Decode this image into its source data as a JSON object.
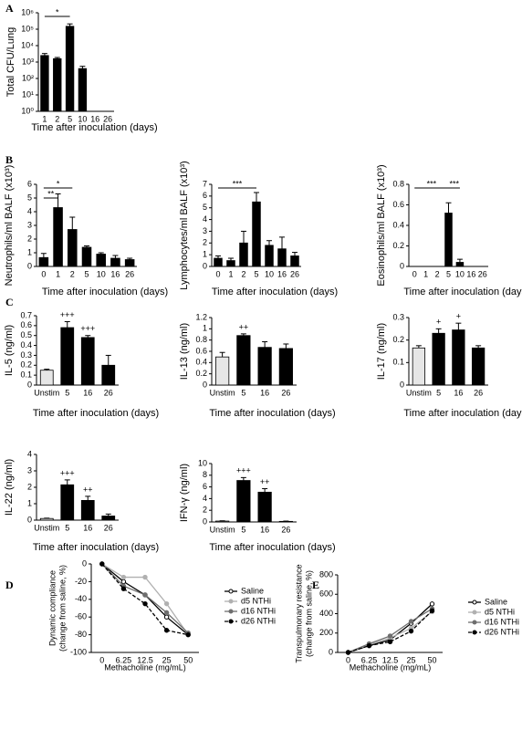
{
  "chart_data": [
    {
      "type": "bar",
      "panel_label": "A",
      "ylabel": "Total CFU/Lung",
      "xlabel": "Time after inoculation (days)",
      "log_scale": true,
      "color": "#000000",
      "categories": [
        "1",
        "2",
        "5",
        "10",
        "16",
        "26"
      ],
      "values": [
        2500,
        1600,
        150000,
        400,
        null,
        null
      ],
      "errors": [
        800,
        300,
        60000,
        150,
        null,
        null
      ],
      "ylim": [
        1,
        1000000
      ],
      "yticks": [
        {
          "value": 1,
          "label": "10⁰"
        },
        {
          "value": 10,
          "label": "10¹"
        },
        {
          "value": 100,
          "label": "10²"
        },
        {
          "value": 1000,
          "label": "10³"
        },
        {
          "value": 10000,
          "label": "10⁴"
        },
        {
          "value": 100000,
          "label": "10⁵"
        },
        {
          "value": 1000000,
          "label": "10⁶"
        }
      ],
      "annotations": [
        {
          "text": "*",
          "between": [
            "1",
            "5"
          ]
        }
      ]
    },
    {
      "type": "bar",
      "panel_label": "B",
      "ylabel": "Neutrophils/ml BALF (x10³)",
      "xlabel": "Time after inoculation (days)",
      "color": "#000000",
      "categories": [
        "0",
        "1",
        "2",
        "5",
        "10",
        "16",
        "26"
      ],
      "values": [
        0.65,
        4.3,
        2.7,
        1.4,
        0.9,
        0.6,
        0.5
      ],
      "errors": [
        0.3,
        1.0,
        0.9,
        0.1,
        0.1,
        0.2,
        0.1
      ],
      "ylim": [
        0,
        6
      ],
      "yticks": [
        0,
        1,
        2,
        3,
        4,
        5,
        6
      ],
      "annotations": [
        {
          "text": "*",
          "between": [
            "0",
            "2"
          ]
        },
        {
          "text": "**",
          "between": [
            "0",
            "1"
          ]
        }
      ]
    },
    {
      "type": "bar",
      "ylabel": "Lymphocytes/ml BALF (x10³)",
      "xlabel": "Time after inoculation (days)",
      "color": "#000000",
      "categories": [
        "0",
        "1",
        "2",
        "5",
        "10",
        "16",
        "26"
      ],
      "values": [
        0.7,
        0.5,
        2.0,
        5.5,
        1.8,
        1.5,
        0.9
      ],
      "errors": [
        0.2,
        0.2,
        1.0,
        0.8,
        0.4,
        1.0,
        0.3
      ],
      "ylim": [
        0,
        7
      ],
      "yticks": [
        0,
        1,
        2,
        3,
        4,
        5,
        6,
        7
      ],
      "annotations": [
        {
          "text": "***",
          "between": [
            "0",
            "5"
          ]
        }
      ]
    },
    {
      "type": "bar",
      "ylabel": "Eosinophils/ml BALF (x10³)",
      "xlabel": "Time after inoculation (days)",
      "color": "#000000",
      "categories": [
        "0",
        "1",
        "2",
        "5",
        "10",
        "16",
        "26"
      ],
      "values": [
        0,
        0,
        0,
        0.52,
        0.04,
        0,
        0
      ],
      "errors": [
        0,
        0,
        0,
        0.1,
        0.03,
        0,
        0
      ],
      "ylim": [
        0,
        0.8
      ],
      "yticks": [
        0,
        0.2,
        0.4,
        0.6,
        0.8
      ],
      "annotations": [
        {
          "text": "***",
          "between": [
            "0",
            "5"
          ]
        },
        {
          "text": "***",
          "between": [
            "5",
            "10"
          ]
        }
      ]
    },
    {
      "type": "bar",
      "panel_label": "C",
      "ylabel": "IL-5  (ng/ml)",
      "xlabel": "Time after inoculation (days)",
      "colors": [
        "#e6e6e6",
        "#000000",
        "#000000",
        "#000000"
      ],
      "categories": [
        "Unstim",
        "5",
        "16",
        "26"
      ],
      "values": [
        0.15,
        0.58,
        0.48,
        0.2
      ],
      "errors": [
        0.01,
        0.06,
        0.02,
        0.1
      ],
      "ylim": [
        0,
        0.7
      ],
      "yticks": [
        0,
        0.1,
        0.2,
        0.3,
        0.4,
        0.5,
        0.6,
        0.7
      ],
      "bar_labels": [
        {
          "text": "+++",
          "category": "5"
        },
        {
          "text": "+++",
          "category": "16"
        }
      ]
    },
    {
      "type": "bar",
      "ylabel": "IL-13 (ng/ml)",
      "xlabel": "Time after inoculation (days)",
      "colors": [
        "#e6e6e6",
        "#000000",
        "#000000",
        "#000000"
      ],
      "categories": [
        "Unstim",
        "5",
        "16",
        "26"
      ],
      "values": [
        0.5,
        0.88,
        0.67,
        0.65
      ],
      "errors": [
        0.08,
        0.03,
        0.1,
        0.08
      ],
      "ylim": [
        0,
        1.2
      ],
      "yticks": [
        0,
        0.2,
        0.4,
        0.6,
        0.8,
        1.0,
        1.2
      ],
      "bar_labels": [
        {
          "text": "++",
          "category": "5"
        }
      ]
    },
    {
      "type": "bar",
      "ylabel": "IL-17 (ng/ml)",
      "xlabel": "Time after inoculation (days)",
      "colors": [
        "#e6e6e6",
        "#000000",
        "#000000",
        "#000000"
      ],
      "categories": [
        "Unstim",
        "5",
        "16",
        "26"
      ],
      "values": [
        0.165,
        0.23,
        0.245,
        0.165
      ],
      "errors": [
        0.01,
        0.02,
        0.03,
        0.01
      ],
      "ylim": [
        0,
        0.3
      ],
      "yticks": [
        0,
        0.1,
        0.2,
        0.3
      ],
      "bar_labels": [
        {
          "text": "+",
          "category": "5"
        },
        {
          "text": "+",
          "category": "16"
        }
      ]
    },
    {
      "type": "bar",
      "ylabel": "IL-22 (ng/ml)",
      "xlabel": "Time after inoculation (days)",
      "colors": [
        "#e6e6e6",
        "#000000",
        "#000000",
        "#000000"
      ],
      "categories": [
        "Unstim",
        "5",
        "16",
        "26"
      ],
      "values": [
        0.1,
        2.15,
        1.2,
        0.25
      ],
      "errors": [
        0.02,
        0.3,
        0.25,
        0.12
      ],
      "ylim": [
        0,
        4
      ],
      "yticks": [
        0,
        1,
        2,
        3,
        4
      ],
      "bar_labels": [
        {
          "text": "+++",
          "category": "5"
        },
        {
          "text": "++",
          "category": "16"
        }
      ]
    },
    {
      "type": "bar",
      "ylabel": "IFN-γ (ng/ml)",
      "xlabel": "Time after inoculation (days)",
      "colors": [
        "#e6e6e6",
        "#000000",
        "#000000",
        "#000000"
      ],
      "categories": [
        "Unstim",
        "5",
        "16",
        "26"
      ],
      "values": [
        0.15,
        7.1,
        5.1,
        0.1
      ],
      "errors": [
        0.05,
        0.5,
        0.6,
        0.05
      ],
      "ylim": [
        0,
        10
      ],
      "yticks": [
        0,
        2,
        4,
        6,
        8,
        10
      ],
      "bar_labels": [
        {
          "text": "+++",
          "category": "5"
        },
        {
          "text": "++",
          "category": "16"
        }
      ]
    },
    {
      "type": "line",
      "panel_label": "D",
      "ylabel": [
        "Dynamic compliance",
        "(change from saline, %)"
      ],
      "xlabel": "Methacholine (mg/mL)",
      "legend": "right",
      "categories": [
        "0",
        "6.25",
        "12.5",
        "25",
        "50"
      ],
      "ylim": [
        -100,
        0
      ],
      "yticks": [
        -100,
        -80,
        -60,
        -40,
        -20,
        0
      ],
      "series": [
        {
          "name": "Saline",
          "color": "#000000",
          "marker": "open-circle",
          "values": [
            0,
            -20,
            -35,
            -60,
            -80
          ]
        },
        {
          "name": "d5 NTHi",
          "color": "#b0b0b0",
          "values": [
            0,
            -15,
            -15,
            -45,
            -80
          ]
        },
        {
          "name": "d16 NTHi",
          "color": "#6e6e6e",
          "values": [
            0,
            -25,
            -35,
            -55,
            -78
          ]
        },
        {
          "name": "d26 NTHi",
          "color": "#000000",
          "dash": true,
          "values": [
            0,
            -28,
            -45,
            -75,
            -80
          ]
        }
      ]
    },
    {
      "type": "line",
      "panel_label": "E",
      "ylabel": [
        "Transpulmonary resistance",
        "(change from saline, %)"
      ],
      "xlabel": "Methacholine (mg/mL)",
      "legend": "right",
      "categories": [
        "0",
        "6.25",
        "12.5",
        "25",
        "50"
      ],
      "ylim": [
        0,
        800
      ],
      "yticks": [
        0,
        200,
        400,
        600,
        800
      ],
      "series": [
        {
          "name": "Saline",
          "color": "#000000",
          "marker": "open-circle",
          "values": [
            0,
            70,
            130,
            300,
            500
          ]
        },
        {
          "name": "d5 NTHi",
          "color": "#b0b0b0",
          "values": [
            0,
            80,
            150,
            250,
            420
          ]
        },
        {
          "name": "d16 NTHi",
          "color": "#6e6e6e",
          "values": [
            0,
            90,
            170,
            320,
            450
          ]
        },
        {
          "name": "d26 NTHi",
          "color": "#000000",
          "dash": true,
          "values": [
            0,
            70,
            110,
            220,
            430
          ]
        }
      ]
    }
  ]
}
